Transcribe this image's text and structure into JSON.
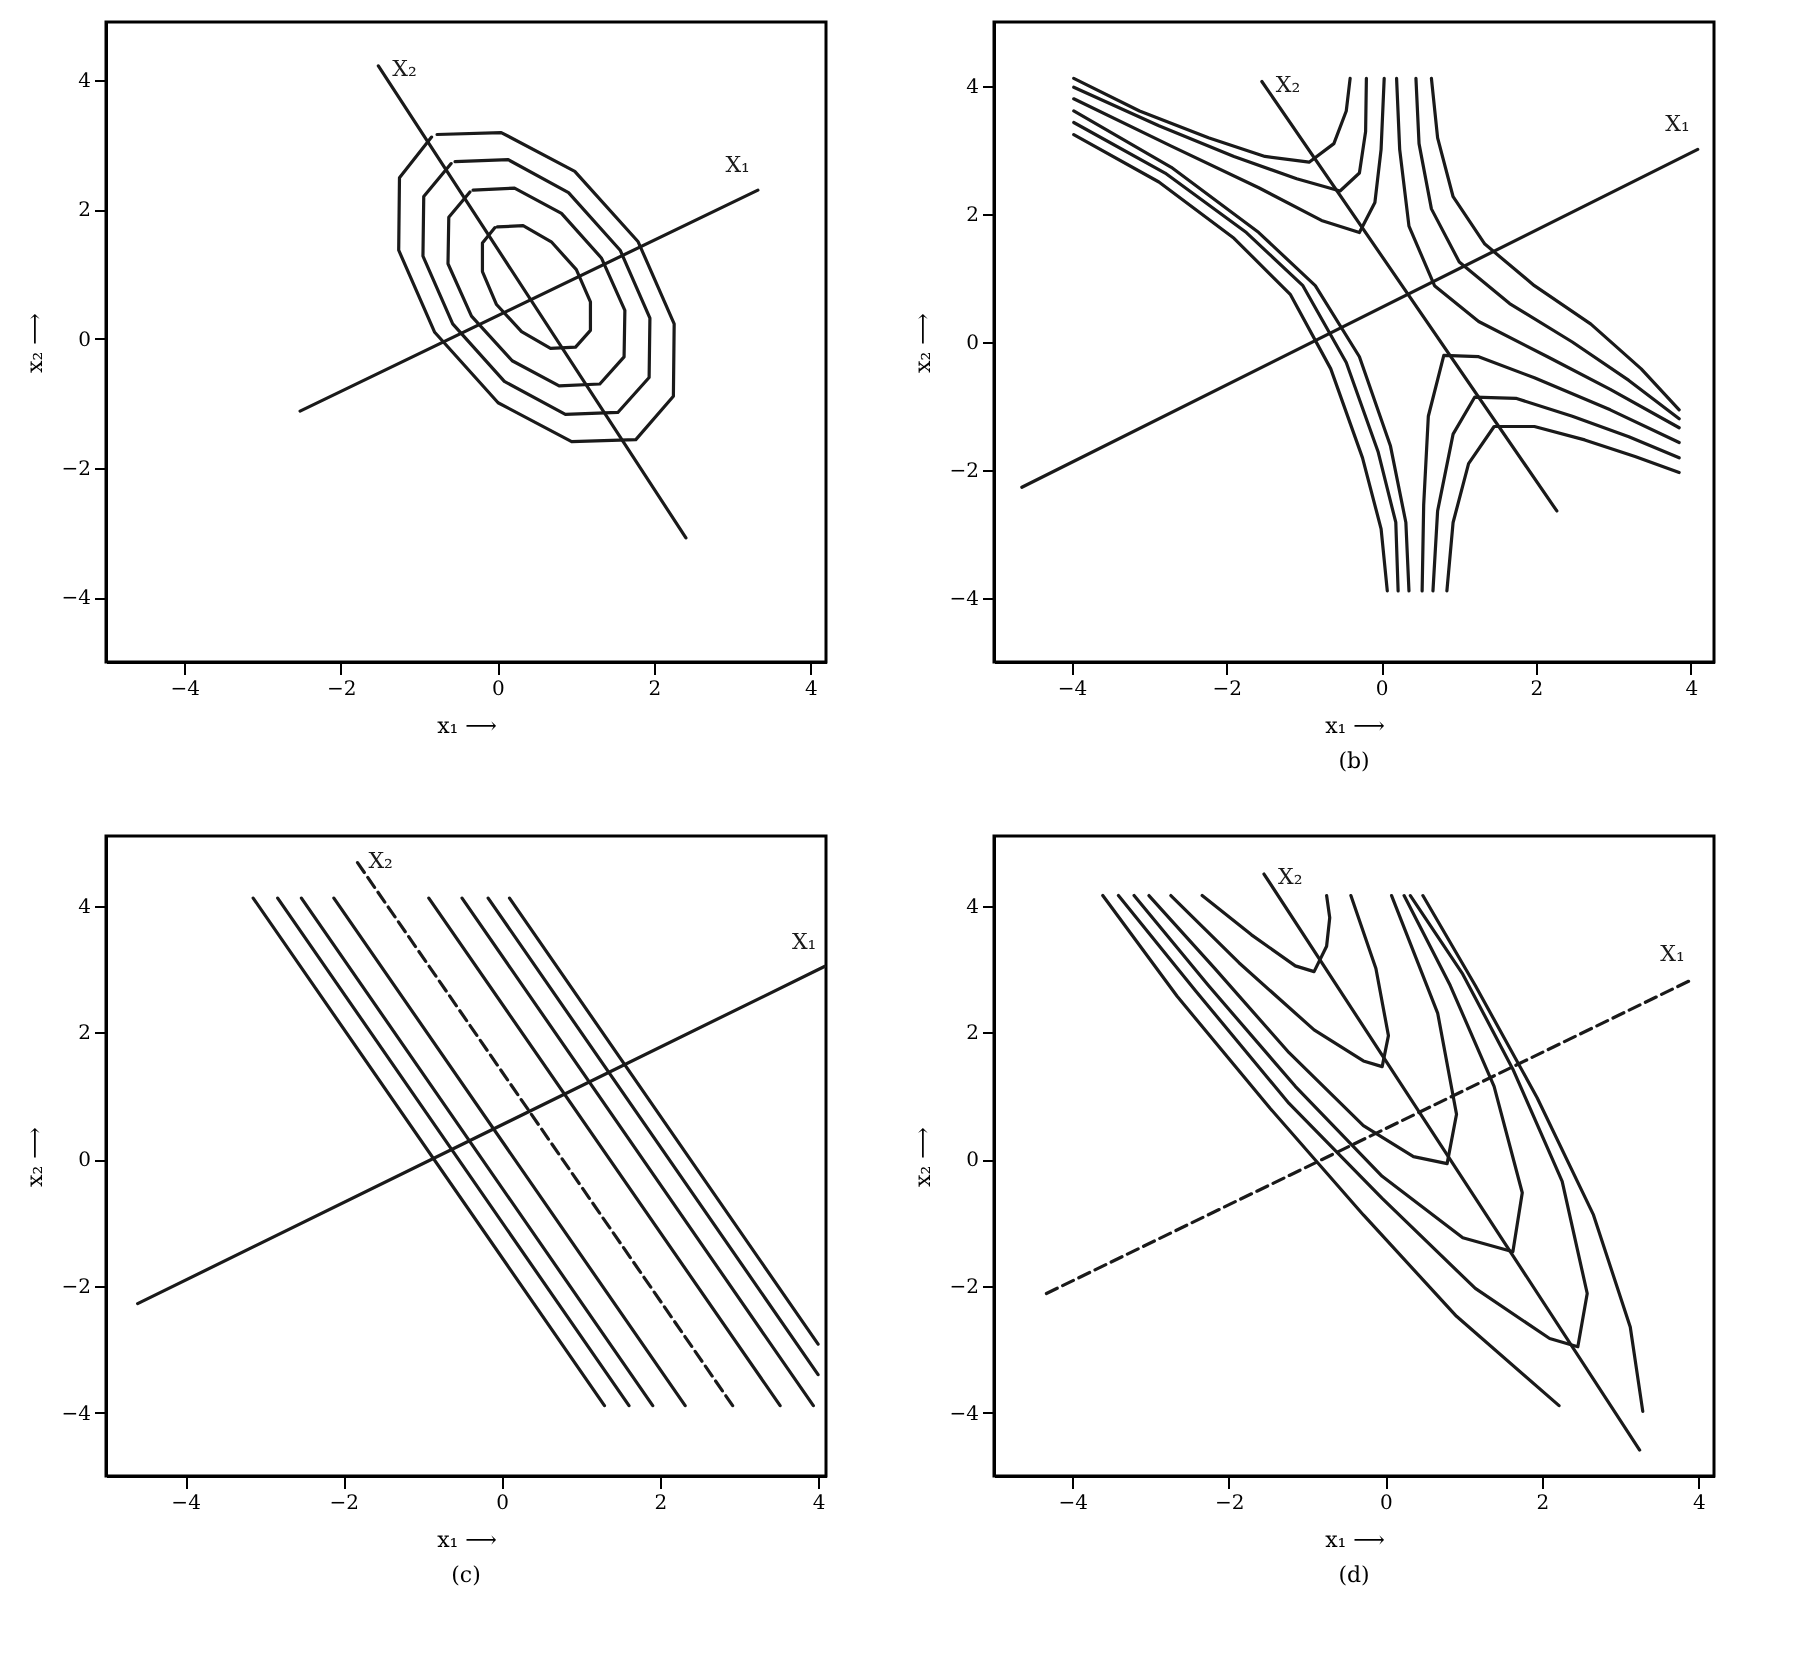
{
  "chart_data": [
    {
      "type": "line",
      "xlabel": "x₁ ⟶",
      "ylabel": "x₂ ⟶",
      "xlim": [
        -5,
        4.2
      ],
      "ylim": [
        -5,
        4.9
      ],
      "xticks": [
        -4,
        -2,
        0,
        2,
        4
      ],
      "yticks": [
        -4,
        -2,
        0,
        2,
        4
      ],
      "series": [
        {
          "color": "#1a1a1a",
          "x": [
            -0.77,
            0.05,
            0.99,
            1.8,
            2.26,
            2.25,
            1.77,
            0.95,
            0.01,
            -0.8,
            -1.26,
            -1.25,
            -0.84
          ],
          "values": [
            3.16,
            3.19,
            2.59,
            1.5,
            0.23,
            -0.89,
            -1.56,
            -1.59,
            -0.99,
            0.1,
            1.37,
            2.49,
            3.12
          ]
        },
        {
          "color": "#1a1a1a",
          "x": [
            -0.54,
            0.14,
            0.91,
            1.57,
            1.95,
            1.94,
            1.54,
            0.87,
            0.09,
            -0.57,
            -0.95,
            -0.94,
            -0.59
          ],
          "values": [
            2.74,
            2.77,
            2.26,
            1.37,
            0.32,
            -0.6,
            -1.14,
            -1.17,
            -0.66,
            0.23,
            1.28,
            2.2,
            2.71
          ]
        },
        {
          "color": "#1a1a1a",
          "x": [
            -0.31,
            0.22,
            0.82,
            1.33,
            1.63,
            1.62,
            1.31,
            0.79,
            0.19,
            -0.33,
            -0.63,
            -0.62,
            -0.35
          ],
          "values": [
            2.3,
            2.33,
            1.94,
            1.25,
            0.44,
            -0.28,
            -0.7,
            -0.73,
            -0.34,
            0.35,
            1.16,
            1.88,
            2.27
          ]
        },
        {
          "color": "#1a1a1a",
          "x": [
            0.0,
            0.33,
            0.69,
            1.01,
            1.19,
            1.19,
            1.0,
            0.68,
            0.31,
            -0.01,
            -0.19,
            -0.19,
            -0.03
          ],
          "values": [
            1.73,
            1.75,
            1.5,
            1.07,
            0.57,
            0.13,
            -0.13,
            -0.15,
            0.11,
            0.53,
            1.04,
            1.48,
            1.72
          ]
        },
        {
          "name": "X₂",
          "color": "#1a1a1a",
          "x": [
            2.41,
            -1.52
          ],
          "values": [
            -3.08,
            4.22
          ]
        },
        {
          "name": "X₁",
          "color": "#1a1a1a",
          "x": [
            -2.52,
            3.33
          ],
          "values": [
            -1.12,
            2.3
          ]
        }
      ]
    },
    {
      "type": "line",
      "xlabel": "x₁ ⟶",
      "ylabel": "x₂ ⟶",
      "xlim": [
        -5,
        4.3
      ],
      "ylim": [
        -5,
        5
      ],
      "xticks": [
        -4,
        -2,
        0,
        2,
        4
      ],
      "yticks": [
        -4,
        -2,
        0,
        2,
        4
      ],
      "annotations": [
        "(b)"
      ],
      "series": [
        {
          "color": "#1a1a1a",
          "x": [
            -3.97,
            -3.12,
            -2.23,
            -1.5,
            -0.93,
            -0.61,
            -0.45,
            -0.4
          ],
          "values": [
            4.12,
            3.61,
            3.19,
            2.9,
            2.81,
            3.1,
            3.61,
            4.12
          ]
        },
        {
          "color": "#1a1a1a",
          "x": [
            -3.97,
            -2.87,
            -1.9,
            -1.09,
            -0.53,
            -0.28,
            -0.2,
            -0.19
          ],
          "values": [
            3.98,
            3.38,
            2.9,
            2.55,
            2.36,
            2.64,
            3.29,
            4.12
          ]
        },
        {
          "color": "#1a1a1a",
          "x": [
            -3.97,
            -2.71,
            -1.58,
            -0.77,
            -0.28,
            -0.08,
            0,
            0.04
          ],
          "values": [
            3.8,
            3.06,
            2.41,
            1.9,
            1.71,
            2.18,
            3.01,
            4.12
          ]
        },
        {
          "color": "#1a1a1a",
          "x": [
            -3.97,
            -2.71,
            -1.58,
            -0.85,
            -0.28,
            0.12,
            0.32,
            0.36
          ],
          "values": [
            3.61,
            2.73,
            1.71,
            0.88,
            -0.23,
            -1.62,
            -2.82,
            -3.89
          ]
        },
        {
          "color": "#1a1a1a",
          "x": [
            -3.97,
            -2.79,
            -1.74,
            -1.01,
            -0.45,
            -0.04,
            0.19,
            0.22
          ],
          "values": [
            3.43,
            2.64,
            1.71,
            0.88,
            -0.32,
            -1.71,
            -2.82,
            -3.89
          ]
        },
        {
          "color": "#1a1a1a",
          "x": [
            -3.97,
            -2.87,
            -1.9,
            -1.17,
            -0.65,
            -0.24,
            0,
            0.08
          ],
          "values": [
            3.24,
            2.5,
            1.62,
            0.74,
            -0.42,
            -1.81,
            -2.92,
            -3.89
          ]
        },
        {
          "color": "#1a1a1a",
          "x": [
            0.53,
            0.55,
            0.61,
            0.81,
            1.26,
            1.98,
            2.96,
            3.85
          ],
          "values": [
            -3.89,
            -2.55,
            -1.16,
            -0.21,
            -0.23,
            -0.56,
            -1.06,
            -1.57
          ]
        },
        {
          "color": "#1a1a1a",
          "x": [
            0.67,
            0.73,
            0.93,
            1.21,
            1.74,
            2.47,
            3.2,
            3.85
          ],
          "values": [
            -3.89,
            -2.64,
            -1.44,
            -0.86,
            -0.88,
            -1.16,
            -1.48,
            -1.81
          ]
        },
        {
          "color": "#1a1a1a",
          "x": [
            0.85,
            0.93,
            1.13,
            1.46,
            1.98,
            2.63,
            3.28,
            3.85
          ],
          "values": [
            -3.89,
            -2.82,
            -1.9,
            -1.32,
            -1.32,
            -1.53,
            -1.79,
            -2.04
          ]
        },
        {
          "color": "#1a1a1a",
          "x": [
            0.2,
            0.24,
            0.36,
            0.69,
            1.26,
            2.15,
            2.96,
            3.85
          ],
          "values": [
            4.12,
            3.01,
            1.81,
            0.88,
            0.32,
            -0.23,
            -0.74,
            -1.34
          ]
        },
        {
          "color": "#1a1a1a",
          "x": [
            0.45,
            0.49,
            0.65,
            1.01,
            1.66,
            2.47,
            3.2,
            3.85
          ],
          "values": [
            4.12,
            3.1,
            2.08,
            1.25,
            0.6,
            0,
            -0.6,
            -1.2
          ]
        },
        {
          "color": "#1a1a1a",
          "x": [
            0.65,
            0.73,
            0.93,
            1.34,
            1.98,
            2.71,
            3.36,
            3.85
          ],
          "values": [
            4.12,
            3.19,
            2.27,
            1.53,
            0.88,
            0.28,
            -0.42,
            -1.06
          ]
        },
        {
          "name": "X₂",
          "color": "#1a1a1a",
          "x": [
            2.27,
            -1.54
          ],
          "values": [
            -2.64,
            4.07
          ]
        },
        {
          "name": "X₁",
          "color": "#1a1a1a",
          "x": [
            -4.64,
            4.09
          ],
          "values": [
            -2.27,
            3.01
          ]
        }
      ]
    },
    {
      "type": "line",
      "xlabel": "x₁ ⟶",
      "ylabel": "x₂ ⟶",
      "xlim": [
        -5,
        4.1
      ],
      "ylim": [
        -5,
        5.1
      ],
      "xticks": [
        -4,
        -2,
        0,
        2,
        4
      ],
      "yticks": [
        -4,
        -2,
        0,
        2,
        4
      ],
      "annotations": [
        "(c)"
      ],
      "series": [
        {
          "color": "#1a1a1a",
          "x": [
            -3.14,
            1.3
          ],
          "values": [
            4.12,
            -3.89
          ]
        },
        {
          "color": "#1a1a1a",
          "x": [
            -2.83,
            1.61
          ],
          "values": [
            4.12,
            -3.89
          ]
        },
        {
          "color": "#1a1a1a",
          "x": [
            -2.53,
            1.91
          ],
          "values": [
            4.12,
            -3.89
          ]
        },
        {
          "color": "#1a1a1a",
          "x": [
            -2.12,
            2.32
          ],
          "values": [
            4.12,
            -3.89
          ]
        },
        {
          "color": "#1a1a1a",
          "x": [
            -0.92,
            3.52
          ],
          "values": [
            4.12,
            -3.89
          ]
        },
        {
          "color": "#1a1a1a",
          "x": [
            -0.5,
            3.94
          ],
          "values": [
            4.12,
            -3.89
          ]
        },
        {
          "color": "#1a1a1a",
          "x": [
            -0.17,
            4.0
          ],
          "values": [
            4.12,
            -3.4
          ]
        },
        {
          "color": "#1a1a1a",
          "x": [
            0.1,
            4.0
          ],
          "values": [
            4.12,
            -2.92
          ]
        },
        {
          "name": "X₂",
          "color": "#1a1a1a",
          "line_style": "dashed",
          "x": [
            2.92,
            -1.86
          ],
          "values": [
            -3.89,
            4.75
          ]
        },
        {
          "name": "X₁",
          "color": "#1a1a1a",
          "x": [
            -4.6,
            4.08
          ],
          "values": [
            -2.28,
            3.04
          ]
        }
      ]
    },
    {
      "type": "line",
      "xlabel": "x₁ ⟶",
      "ylabel": "x₂ ⟶",
      "xlim": [
        -5,
        4.2
      ],
      "ylim": [
        -5,
        5.1
      ],
      "xticks": [
        -4,
        -2,
        0,
        2,
        4
      ],
      "yticks": [
        -4,
        -2,
        0,
        2,
        4
      ],
      "annotations": [
        "(d)"
      ],
      "series": [
        {
          "color": "#1a1a1a",
          "x": [
            -2.34,
            -1.71,
            -1.15,
            -0.91,
            -0.75,
            -0.71,
            -0.75
          ],
          "values": [
            4.16,
            3.54,
            3.05,
            2.96,
            3.36,
            3.81,
            4.16
          ]
        },
        {
          "color": "#1a1a1a",
          "x": [
            -2.74,
            -1.87,
            -0.91,
            -0.28,
            -0.04,
            0.04,
            -0.12,
            -0.44
          ],
          "values": [
            4.16,
            3.1,
            2.04,
            1.55,
            1.46,
            1.95,
            3.01,
            4.16
          ]
        },
        {
          "color": "#1a1a1a",
          "x": [
            -3.02,
            -2.18,
            -1.23,
            -0.28,
            0.36,
            0.79,
            0.91,
            0.67,
            0.08
          ],
          "values": [
            4.16,
            3.01,
            1.68,
            0.53,
            0.04,
            -0.07,
            0.71,
            2.3,
            4.16
          ]
        },
        {
          "color": "#1a1a1a",
          "x": [
            -3.21,
            -2.26,
            -1.15,
            -0.04,
            0.99,
            1.63,
            1.75,
            1.39,
            0.83,
            0.24
          ],
          "values": [
            4.16,
            2.74,
            1.15,
            -0.27,
            -1.24,
            -1.46,
            -0.53,
            1.15,
            2.74,
            4.16
          ]
        },
        {
          "color": "#1a1a1a",
          "x": [
            -3.41,
            -2.42,
            -1.23,
            -0.04,
            1.15,
            2.1,
            2.46,
            2.58,
            2.26,
            1.63,
            0.99,
            0.32
          ],
          "values": [
            4.16,
            2.65,
            0.88,
            -0.62,
            -2.04,
            -2.83,
            -2.96,
            -2.12,
            -0.35,
            1.42,
            2.92,
            4.16
          ]
        },
        {
          "color": "#1a1a1a",
          "x": [
            -3.61,
            -2.66,
            -1.47,
            -0.28,
            0.91,
            2.22
          ],
          "values": [
            4.16,
            2.57,
            0.8,
            -0.88,
            -2.48,
            -3.89
          ]
        },
        {
          "color": "#1a1a1a",
          "x": [
            0.48,
            1.15,
            1.94,
            2.66,
            3.13,
            3.29
          ],
          "values": [
            4.16,
            2.74,
            0.97,
            -0.88,
            -2.65,
            -3.98
          ]
        },
        {
          "name": "X₂",
          "color": "#1a1a1a",
          "x": [
            3.25,
            -1.55
          ],
          "values": [
            -4.59,
            4.5
          ]
        },
        {
          "name": "X₁",
          "color": "#1a1a1a",
          "line_style": "dashed",
          "x": [
            -4.33,
            3.93
          ],
          "values": [
            -2.12,
            2.84
          ]
        }
      ]
    }
  ]
}
